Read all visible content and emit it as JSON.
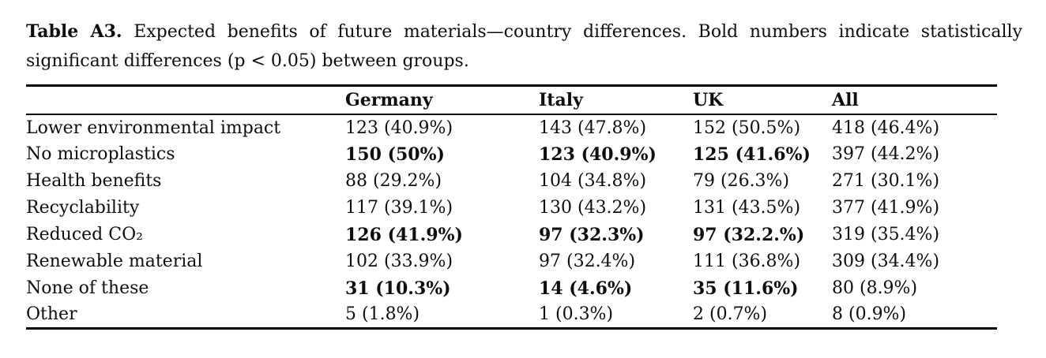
{
  "caption": {
    "label": "Table A3.",
    "line1_rest": "Expected benefits of future materials—country differences. Bold numbers indicate statistically",
    "line2": "significant differences (p < 0.05) between groups."
  },
  "table": {
    "columns": [
      "",
      "Germany",
      "Italy",
      "UK",
      "All"
    ],
    "rows": [
      {
        "label": "Lower environmental impact",
        "cells": [
          {
            "text": "123 (40.9%)",
            "bold": false
          },
          {
            "text": "143 (47.8%)",
            "bold": false
          },
          {
            "text": "152 (50.5%)",
            "bold": false
          },
          {
            "text": "418 (46.4%)",
            "bold": false
          }
        ]
      },
      {
        "label": "No microplastics",
        "cells": [
          {
            "text": "150 (50%)",
            "bold": true
          },
          {
            "text": "123 (40.9%)",
            "bold": true
          },
          {
            "text": "125 (41.6%)",
            "bold": true
          },
          {
            "text": "397 (44.2%)",
            "bold": false
          }
        ]
      },
      {
        "label": "Health benefits",
        "cells": [
          {
            "text": "88 (29.2%)",
            "bold": false
          },
          {
            "text": "104 (34.8%)",
            "bold": false
          },
          {
            "text": "79 (26.3%)",
            "bold": false
          },
          {
            "text": "271 (30.1%)",
            "bold": false
          }
        ]
      },
      {
        "label": "Recyclability",
        "cells": [
          {
            "text": "117 (39.1%)",
            "bold": false
          },
          {
            "text": "130 (43.2%)",
            "bold": false
          },
          {
            "text": "131 (43.5%)",
            "bold": false
          },
          {
            "text": "377 (41.9%)",
            "bold": false
          }
        ]
      },
      {
        "label": "Reduced CO₂",
        "cells": [
          {
            "text": "126 (41.9%)",
            "bold": true
          },
          {
            "text": "97 (32.3%)",
            "bold": true
          },
          {
            "text": "97 (32.2.%)",
            "bold": true
          },
          {
            "text": "319 (35.4%)",
            "bold": false
          }
        ]
      },
      {
        "label": "Renewable material",
        "cells": [
          {
            "text": "102 (33.9%)",
            "bold": false
          },
          {
            "text": "97 (32.4%)",
            "bold": false
          },
          {
            "text": "111 (36.8%)",
            "bold": false
          },
          {
            "text": "309 (34.4%)",
            "bold": false
          }
        ]
      },
      {
        "label": "None of these",
        "cells": [
          {
            "text": "31 (10.3%)",
            "bold": true
          },
          {
            "text": "14 (4.6%)",
            "bold": true
          },
          {
            "text": "35 (11.6%)",
            "bold": true
          },
          {
            "text": "80 (8.9%)",
            "bold": false
          }
        ]
      },
      {
        "label": "Other",
        "cells": [
          {
            "text": "5 (1.8%)",
            "bold": false
          },
          {
            "text": "1 (0.3%)",
            "bold": false
          },
          {
            "text": "2 (0.7%)",
            "bold": false
          },
          {
            "text": "8 (0.9%)",
            "bold": false
          }
        ]
      }
    ]
  },
  "colors": {
    "text": "#0e0e0e",
    "background": "#ffffff",
    "rule": "#000000"
  }
}
